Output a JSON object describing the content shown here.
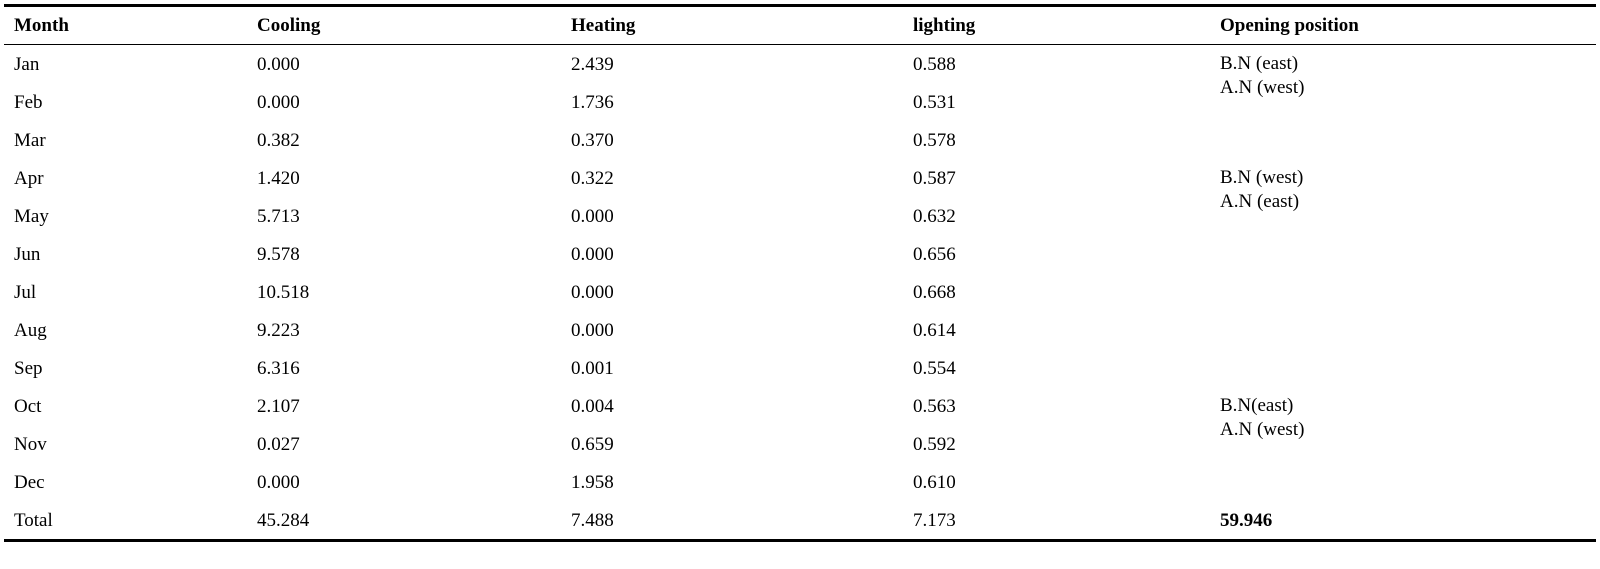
{
  "headers": [
    "Month",
    "Cooling",
    "Heating",
    "lighting",
    "Opening position"
  ],
  "rows": [
    {
      "month": "Jan",
      "cooling": "0.000",
      "heating": "2.439",
      "lighting": "0.588"
    },
    {
      "month": "Feb",
      "cooling": "0.000",
      "heating": "1.736",
      "lighting": "0.531"
    },
    {
      "month": "Mar",
      "cooling": "0.382",
      "heating": "0.370",
      "lighting": "0.578"
    },
    {
      "month": "Apr",
      "cooling": "1.420",
      "heating": "0.322",
      "lighting": "0.587"
    },
    {
      "month": "May",
      "cooling": "5.713",
      "heating": "0.000",
      "lighting": "0.632"
    },
    {
      "month": "Jun",
      "cooling": "9.578",
      "heating": "0.000",
      "lighting": "0.656"
    },
    {
      "month": "Jul",
      "cooling": "10.518",
      "heating": "0.000",
      "lighting": "0.668"
    },
    {
      "month": "Aug",
      "cooling": "9.223",
      "heating": "0.000",
      "lighting": "0.614"
    },
    {
      "month": "Sep",
      "cooling": "6.316",
      "heating": "0.001",
      "lighting": "0.554"
    },
    {
      "month": "Oct",
      "cooling": "2.107",
      "heating": "0.004",
      "lighting": "0.563"
    },
    {
      "month": "Nov",
      "cooling": "0.027",
      "heating": "0.659",
      "lighting": "0.592"
    },
    {
      "month": "Dec",
      "cooling": "0.000",
      "heating": "1.958",
      "lighting": "0.610"
    }
  ],
  "opening_positions": [
    {
      "line1": "B.N (east)",
      "line2": "A.N (west)"
    },
    {
      "line1": "B.N (west)",
      "line2": "A.N (east)"
    },
    {
      "line1": "B.N(east)",
      "line2": "A.N (west)"
    }
  ],
  "total": {
    "label": "Total",
    "cooling": "45.284",
    "heating": "7.488",
    "lighting": "7.173",
    "overall": "59.946"
  }
}
